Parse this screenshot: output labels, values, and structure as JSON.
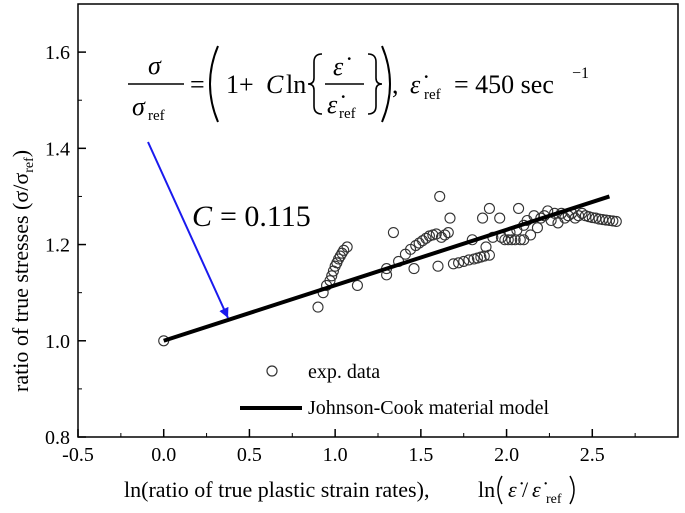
{
  "chart_data": {
    "type": "scatter",
    "xlim": [
      -0.5,
      3.0
    ],
    "ylim": [
      0.8,
      1.7
    ],
    "xticks": [
      -0.5,
      0.0,
      0.5,
      1.0,
      1.5,
      2.0,
      2.5
    ],
    "xtick_labels": [
      "-0.5",
      "0.0",
      "0.5",
      "1.0",
      "1.5",
      "2.0",
      "2.5"
    ],
    "yticks": [
      0.8,
      1.0,
      1.2,
      1.4,
      1.6
    ],
    "ytick_labels": [
      "0.8",
      "1.0",
      "1.2",
      "1.4",
      "1.6"
    ],
    "xlabel_text": "ln(ratio of true plastic strain rates),",
    "xlabel_math": "ln(ε̇/ε̇ref)",
    "ylabel_text": "ratio of true stresses (σ/σref)",
    "legend_placement": "bottom-center",
    "grid": false,
    "annotation_equation": {
      "sigma": "σ",
      "sigma_ref": "σ",
      "ref_sub": "ref",
      "one_plus": "1+",
      "C": "C",
      "ln": "ln",
      "eps_dot": "ε̇",
      "comma": ",",
      "eps_ref_value": "= 450 sec",
      "exponent": "−1"
    },
    "annotation_C": {
      "C": "C",
      "value": "= 0.115"
    },
    "annotation_arrow_color": "#1a1aee",
    "series": [
      {
        "name": "exp. data",
        "kind": "scatter",
        "marker": "open-circle",
        "color": "#333333",
        "points": [
          [
            0.0,
            1.0
          ],
          [
            0.9,
            1.07
          ],
          [
            0.93,
            1.1
          ],
          [
            0.95,
            1.115
          ],
          [
            0.97,
            1.125
          ],
          [
            0.98,
            1.135
          ],
          [
            0.99,
            1.145
          ],
          [
            1.0,
            1.155
          ],
          [
            1.01,
            1.162
          ],
          [
            1.02,
            1.17
          ],
          [
            1.03,
            1.176
          ],
          [
            1.04,
            1.182
          ],
          [
            1.05,
            1.188
          ],
          [
            1.07,
            1.195
          ],
          [
            1.13,
            1.115
          ],
          [
            1.3,
            1.137
          ],
          [
            1.3,
            1.15
          ],
          [
            1.34,
            1.225
          ],
          [
            1.37,
            1.165
          ],
          [
            1.41,
            1.18
          ],
          [
            1.44,
            1.19
          ],
          [
            1.46,
            1.15
          ],
          [
            1.47,
            1.198
          ],
          [
            1.49,
            1.203
          ],
          [
            1.51,
            1.208
          ],
          [
            1.53,
            1.213
          ],
          [
            1.55,
            1.218
          ],
          [
            1.57,
            1.22
          ],
          [
            1.59,
            1.222
          ],
          [
            1.6,
            1.155
          ],
          [
            1.61,
            1.3
          ],
          [
            1.62,
            1.215
          ],
          [
            1.64,
            1.22
          ],
          [
            1.66,
            1.225
          ],
          [
            1.67,
            1.255
          ],
          [
            1.69,
            1.16
          ],
          [
            1.72,
            1.162
          ],
          [
            1.75,
            1.165
          ],
          [
            1.78,
            1.168
          ],
          [
            1.8,
            1.21
          ],
          [
            1.81,
            1.17
          ],
          [
            1.83,
            1.172
          ],
          [
            1.85,
            1.174
          ],
          [
            1.87,
            1.176
          ],
          [
            1.88,
            1.195
          ],
          [
            1.9,
            1.178
          ],
          [
            1.86,
            1.255
          ],
          [
            1.9,
            1.275
          ],
          [
            1.92,
            1.215
          ],
          [
            1.96,
            1.255
          ],
          [
            1.97,
            1.215
          ],
          [
            1.99,
            1.21
          ],
          [
            2.01,
            1.21
          ],
          [
            2.02,
            1.225
          ],
          [
            2.03,
            1.21
          ],
          [
            2.05,
            1.21
          ],
          [
            2.06,
            1.23
          ],
          [
            2.07,
            1.275
          ],
          [
            2.08,
            1.21
          ],
          [
            2.1,
            1.21
          ],
          [
            2.1,
            1.24
          ],
          [
            2.12,
            1.25
          ],
          [
            2.14,
            1.22
          ],
          [
            2.16,
            1.26
          ],
          [
            2.18,
            1.235
          ],
          [
            2.2,
            1.255
          ],
          [
            2.22,
            1.26
          ],
          [
            2.24,
            1.27
          ],
          [
            2.26,
            1.25
          ],
          [
            2.28,
            1.265
          ],
          [
            2.3,
            1.245
          ],
          [
            2.32,
            1.265
          ],
          [
            2.34,
            1.255
          ],
          [
            2.36,
            1.26
          ],
          [
            2.38,
            1.265
          ],
          [
            2.4,
            1.255
          ],
          [
            2.42,
            1.26
          ],
          [
            2.44,
            1.265
          ],
          [
            2.46,
            1.26
          ],
          [
            2.48,
            1.258
          ],
          [
            2.5,
            1.256
          ],
          [
            2.52,
            1.255
          ],
          [
            2.54,
            1.253
          ],
          [
            2.56,
            1.252
          ],
          [
            2.58,
            1.251
          ],
          [
            2.6,
            1.25
          ],
          [
            2.62,
            1.249
          ],
          [
            2.64,
            1.248
          ]
        ]
      },
      {
        "name": "Johnson-Cook material model",
        "kind": "line",
        "color": "#000000",
        "x": [
          0.0,
          2.6
        ],
        "y": [
          1.0,
          1.3
        ]
      }
    ]
  }
}
